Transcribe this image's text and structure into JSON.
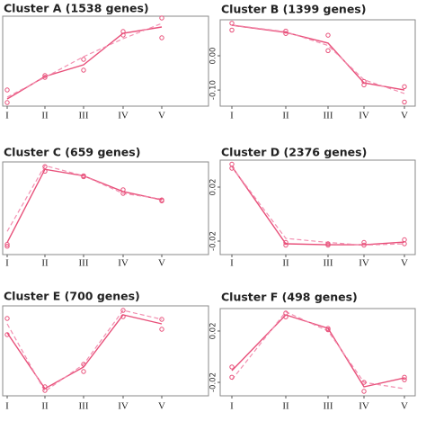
{
  "chart_data": [
    {
      "type": "line",
      "title": "Cluster A (1538 genes)",
      "categories": [
        "I",
        "II",
        "III",
        "IV",
        "V"
      ],
      "ylim": [
        0,
        1
      ],
      "series": [
        {
          "color": "#e8507a",
          "style": "solid",
          "values": [
            0.08,
            0.33,
            0.46,
            0.81,
            0.88
          ]
        },
        {
          "color": "#f28fb0",
          "style": "dashed",
          "values": [
            0.1,
            0.32,
            0.55,
            0.75,
            0.92
          ]
        },
        {
          "color": "#e8507a",
          "style": "points",
          "values": [
            0.18,
            0.34,
            0.52,
            0.83,
            0.98
          ]
        },
        {
          "color": "#e8507a",
          "style": "points",
          "values": [
            0.04,
            0.32,
            0.4,
            0.79,
            0.76
          ]
        }
      ]
    },
    {
      "type": "line",
      "title": "Cluster B (1399 genes)",
      "categories": [
        "I",
        "II",
        "III",
        "IV",
        "V"
      ],
      "ylim": [
        -0.147,
        0.105
      ],
      "yticks": [
        {
          "value": -0.1,
          "label": "-0.10"
        },
        {
          "value": 0,
          "label": "0.00"
        }
      ],
      "series": [
        {
          "color": "#e8507a",
          "style": "solid",
          "values": [
            0.089,
            0.068,
            0.037,
            -0.079,
            -0.1
          ]
        },
        {
          "color": "#f28fb0",
          "style": "dashed",
          "values": [
            0.09,
            0.07,
            0.03,
            -0.07,
            -0.11
          ]
        },
        {
          "color": "#e8507a",
          "style": "points",
          "values": [
            0.095,
            0.072,
            0.06,
            -0.075,
            -0.09
          ]
        },
        {
          "color": "#e8507a",
          "style": "points",
          "values": [
            0.075,
            0.065,
            0.015,
            -0.085,
            -0.135
          ]
        }
      ]
    },
    {
      "type": "line",
      "title": "Cluster C (659 genes)",
      "categories": [
        "I",
        "II",
        "III",
        "IV",
        "V"
      ],
      "ylim": [
        0,
        1
      ],
      "series": [
        {
          "color": "#e8507a",
          "style": "solid",
          "values": [
            0.13,
            0.92,
            0.85,
            0.68,
            0.59
          ]
        },
        {
          "color": "#f28fb0",
          "style": "dashed",
          "values": [
            0.25,
            0.96,
            0.85,
            0.66,
            0.6
          ]
        },
        {
          "color": "#e8507a",
          "style": "points",
          "values": [
            0.11,
            0.95,
            0.85,
            0.7,
            0.59
          ]
        },
        {
          "color": "#e8507a",
          "style": "points",
          "values": [
            0.09,
            0.9,
            0.84,
            0.66,
            0.58
          ]
        }
      ]
    },
    {
      "type": "line",
      "title": "Cluster D (2376 genes)",
      "categories": [
        "I",
        "II",
        "III",
        "IV",
        "V"
      ],
      "ylim": [
        -0.03,
        0.04
      ],
      "yticks": [
        -0.02,
        0.02
      ],
      "series": [
        {
          "color": "#e8507a",
          "style": "solid",
          "values": [
            0.0353,
            -0.022,
            -0.0227,
            -0.0227,
            -0.0207
          ]
        },
        {
          "color": "#f28fb0",
          "style": "dashed",
          "values": [
            0.035,
            -0.018,
            -0.021,
            -0.023,
            -0.022
          ]
        },
        {
          "color": "#e8507a",
          "style": "points",
          "values": [
            0.037,
            -0.021,
            -0.022,
            -0.021,
            -0.019
          ]
        },
        {
          "color": "#e8507a",
          "style": "points",
          "values": [
            0.034,
            -0.023,
            -0.023,
            -0.023,
            -0.022
          ]
        }
      ]
    },
    {
      "type": "line",
      "title": "Cluster E (700 genes)",
      "categories": [
        "I",
        "II",
        "III",
        "IV",
        "V"
      ],
      "ylim": [
        0,
        1
      ],
      "series": [
        {
          "color": "#e8507a",
          "style": "solid",
          "values": [
            0.7,
            0.08,
            0.32,
            0.9,
            0.8
          ]
        },
        {
          "color": "#f28fb0",
          "style": "dashed",
          "values": [
            0.8,
            0.05,
            0.35,
            0.95,
            0.85
          ]
        },
        {
          "color": "#e8507a",
          "style": "points",
          "values": [
            0.86,
            0.1,
            0.35,
            0.95,
            0.85
          ]
        },
        {
          "color": "#e8507a",
          "style": "points",
          "values": [
            0.68,
            0.06,
            0.27,
            0.88,
            0.74
          ]
        }
      ]
    },
    {
      "type": "line",
      "title": "Cluster F (498 genes)",
      "categories": [
        "I",
        "II",
        "III",
        "IV",
        "V"
      ],
      "ylim": [
        -0.0305,
        0.0375
      ],
      "yticks": [
        -0.02,
        0.02
      ],
      "series": [
        {
          "color": "#e8507a",
          "style": "solid",
          "values": [
            -0.0109,
            0.0326,
            0.0221,
            -0.0235,
            -0.0165
          ]
        },
        {
          "color": "#f28fb0",
          "style": "dashed",
          "values": [
            -0.018,
            0.035,
            0.02,
            -0.02,
            -0.025
          ]
        },
        {
          "color": "#e8507a",
          "style": "points",
          "values": [
            -0.008,
            0.034,
            0.022,
            -0.02,
            -0.016
          ]
        },
        {
          "color": "#e8507a",
          "style": "points",
          "values": [
            -0.016,
            0.031,
            0.021,
            -0.027,
            -0.018
          ]
        }
      ]
    }
  ]
}
